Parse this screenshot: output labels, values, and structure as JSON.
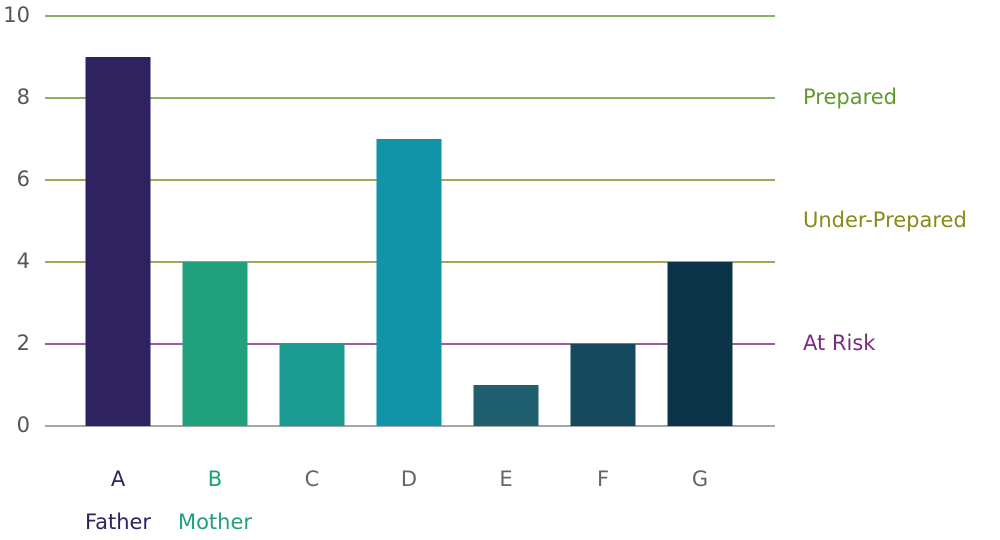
{
  "chart_data": {
    "type": "bar",
    "categories": [
      "A",
      "B",
      "C",
      "D",
      "E",
      "F",
      "G"
    ],
    "values": [
      9,
      4,
      2,
      7,
      1,
      2,
      4
    ],
    "colors": [
      "#2e2360",
      "#20a07c",
      "#1a9a90",
      "#1193a8",
      "#1f5f70",
      "#14485c",
      "#0c3449"
    ],
    "category_label_colors": [
      "#2e2360",
      "#20a07c",
      "#666666",
      "#666666",
      "#666666",
      "#666666",
      "#666666"
    ],
    "sublabels": [
      "Father",
      "Mother",
      null,
      null,
      null,
      null,
      null
    ],
    "ylim": [
      0,
      10
    ],
    "yticks": [
      0,
      2,
      4,
      6,
      8,
      10
    ],
    "grid": true,
    "grid_colors": [
      "#888888",
      "#7a2a82",
      "#8a8a1a",
      "#8a8a1a",
      "#5f9a2a",
      "#5f9a2a"
    ],
    "zones": [
      {
        "label": "Prepared",
        "value": 8,
        "color": "#5f9a2a"
      },
      {
        "label": "Under-Prepared",
        "value": 5,
        "color": "#8a8a1a"
      },
      {
        "label": "At Risk",
        "value": 2,
        "color": "#7a2a82"
      }
    ]
  }
}
